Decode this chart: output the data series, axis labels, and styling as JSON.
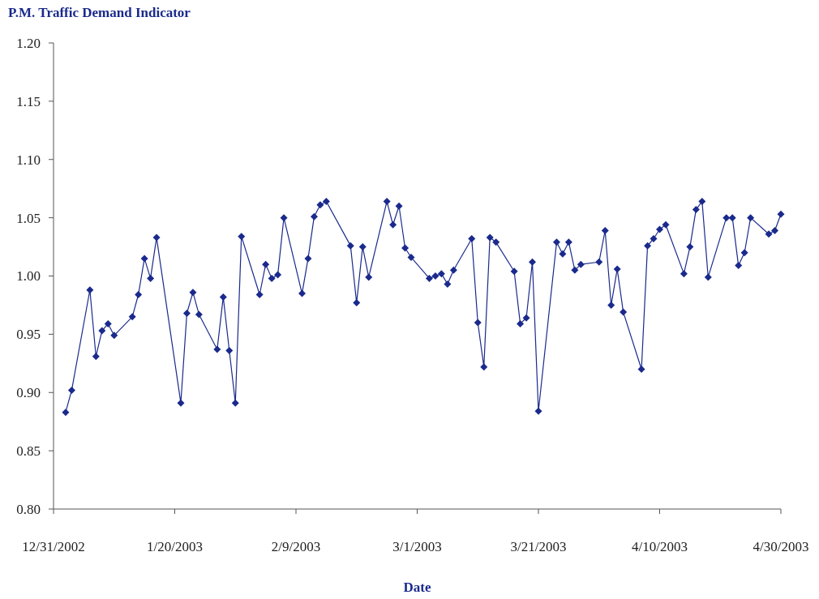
{
  "chart_data": {
    "type": "line",
    "title": "P.M. Traffic Demand Indicator",
    "xlabel": "Date",
    "x": [
      "2003-01-02",
      "2003-01-03",
      "2003-01-06",
      "2003-01-07",
      "2003-01-08",
      "2003-01-09",
      "2003-01-10",
      "2003-01-13",
      "2003-01-14",
      "2003-01-15",
      "2003-01-16",
      "2003-01-17",
      "2003-01-21",
      "2003-01-22",
      "2003-01-23",
      "2003-01-24",
      "2003-01-27",
      "2003-01-28",
      "2003-01-29",
      "2003-01-30",
      "2003-01-31",
      "2003-02-03",
      "2003-02-04",
      "2003-02-05",
      "2003-02-06",
      "2003-02-07",
      "2003-02-10",
      "2003-02-11",
      "2003-02-12",
      "2003-02-13",
      "2003-02-14",
      "2003-02-18",
      "2003-02-19",
      "2003-02-20",
      "2003-02-21",
      "2003-02-24",
      "2003-02-25",
      "2003-02-26",
      "2003-02-27",
      "2003-02-28",
      "2003-03-03",
      "2003-03-04",
      "2003-03-05",
      "2003-03-06",
      "2003-03-07",
      "2003-03-10",
      "2003-03-11",
      "2003-03-12",
      "2003-03-13",
      "2003-03-14",
      "2003-03-17",
      "2003-03-18",
      "2003-03-19",
      "2003-03-20",
      "2003-03-21",
      "2003-03-24",
      "2003-03-25",
      "2003-03-26",
      "2003-03-27",
      "2003-03-28",
      "2003-03-31",
      "2003-04-01",
      "2003-04-02",
      "2003-04-03",
      "2003-04-04",
      "2003-04-07",
      "2003-04-08",
      "2003-04-09",
      "2003-04-10",
      "2003-04-11",
      "2003-04-14",
      "2003-04-15",
      "2003-04-16",
      "2003-04-17",
      "2003-04-18",
      "2003-04-21",
      "2003-04-22",
      "2003-04-23",
      "2003-04-24",
      "2003-04-25",
      "2003-04-28",
      "2003-04-29",
      "2003-04-30"
    ],
    "series": [
      {
        "color": "#1a2a8c",
        "values": [
          0.883,
          0.902,
          0.988,
          0.931,
          0.953,
          0.959,
          0.949,
          0.965,
          0.984,
          1.015,
          0.998,
          1.033,
          0.891,
          0.968,
          0.986,
          0.967,
          0.937,
          0.982,
          0.936,
          0.891,
          1.034,
          0.984,
          1.01,
          0.998,
          1.001,
          1.05,
          0.985,
          1.015,
          1.051,
          1.061,
          1.064,
          1.026,
          0.977,
          1.025,
          0.999,
          1.064,
          1.044,
          1.06,
          1.024,
          1.016,
          0.998,
          1.0,
          1.002,
          0.993,
          1.005,
          1.032,
          0.96,
          0.922,
          1.033,
          1.029,
          1.004,
          0.959,
          0.964,
          1.012,
          0.884,
          1.029,
          1.019,
          1.029,
          1.005,
          1.01,
          1.012,
          1.039,
          0.975,
          1.006,
          0.969,
          0.92,
          1.026,
          1.032,
          1.04,
          1.044,
          1.002,
          1.025,
          1.057,
          1.064,
          0.999,
          1.05,
          1.05,
          1.009,
          1.02,
          1.05,
          1.036,
          1.039,
          1.053
        ]
      }
    ],
    "xlim": [
      "2002-12-31",
      "2003-04-30"
    ],
    "xticks": [
      {
        "value": "2002-12-31",
        "label": "12/31/2002"
      },
      {
        "value": "2003-01-20",
        "label": "1/20/2003"
      },
      {
        "value": "2003-02-09",
        "label": "2/9/2003"
      },
      {
        "value": "2003-03-01",
        "label": "3/1/2003"
      },
      {
        "value": "2003-03-21",
        "label": "3/21/2003"
      },
      {
        "value": "2003-04-10",
        "label": "4/10/2003"
      },
      {
        "value": "2003-04-30",
        "label": "4/30/2003"
      }
    ],
    "ylim": [
      0.8,
      1.2
    ],
    "yticks": [
      {
        "value": 0.8,
        "label": "0.80"
      },
      {
        "value": 0.85,
        "label": "0.85"
      },
      {
        "value": 0.9,
        "label": "0.90"
      },
      {
        "value": 0.95,
        "label": "0.95"
      },
      {
        "value": 1.0,
        "label": "1.00"
      },
      {
        "value": 1.05,
        "label": "1.05"
      },
      {
        "value": 1.1,
        "label": "1.10"
      },
      {
        "value": 1.15,
        "label": "1.15"
      },
      {
        "value": 1.2,
        "label": "1.20"
      }
    ],
    "marker": "diamond",
    "line_style": "solid",
    "grid": false
  }
}
